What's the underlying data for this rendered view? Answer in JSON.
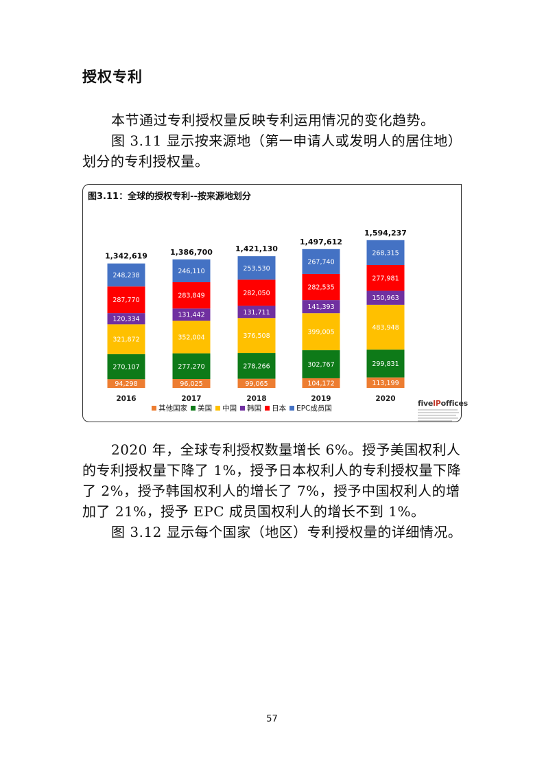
{
  "heading": "授权专利",
  "intro": {
    "lines": [
      "本节通过专利授权量反映专利运用情况的变化趋势。",
      "图 3.11 显示按来源地（第一申请人或发明人的居住地）划分的专利授权量。"
    ]
  },
  "chart_title": "图3.11：全球的授权专利--按来源地划分",
  "chart_data": {
    "type": "bar",
    "stacked": true,
    "categories": [
      "2016",
      "2017",
      "2018",
      "2019",
      "2020"
    ],
    "totals": [
      "1,342,619",
      "1,386,700",
      "1,421,130",
      "1,497,612",
      "1,594,237"
    ],
    "series": [
      {
        "name": "其他国家",
        "color": "#ED7D31",
        "values": [
          94298,
          96025,
          99065,
          104172,
          113199
        ],
        "labels": [
          "94,298",
          "96,025",
          "99,065",
          "104,172",
          "113,199"
        ]
      },
      {
        "name": "美国",
        "color": "#0E7A18",
        "values": [
          270107,
          277270,
          278266,
          302767,
          299831
        ],
        "labels": [
          "270,107",
          "277,270",
          "278,266",
          "302,767",
          "299,831"
        ]
      },
      {
        "name": "中国",
        "color": "#FFC000",
        "values": [
          321872,
          352004,
          376508,
          399005,
          483948
        ],
        "labels": [
          "321,872",
          "352,004",
          "376,508",
          "399,005",
          "483,948"
        ]
      },
      {
        "name": "韩国",
        "color": "#7030A0",
        "values": [
          120334,
          131442,
          131711,
          141393,
          150963
        ],
        "labels": [
          "120,334",
          "131,442",
          "131,711",
          "141,393",
          "150,963"
        ]
      },
      {
        "name": "日本",
        "color": "#FF0000",
        "values": [
          287770,
          283849,
          282050,
          282535,
          277981
        ],
        "labels": [
          "287,770",
          "283,849",
          "282,050",
          "282,535",
          "277,981"
        ]
      },
      {
        "name": "EPC成员国",
        "color": "#4472C4",
        "values": [
          248238,
          246110,
          253530,
          267740,
          268315
        ],
        "labels": [
          "248,238",
          "246,110",
          "253,530",
          "267,740",
          "268,315"
        ]
      }
    ],
    "legend_position": "bottom",
    "grid": false
  },
  "logo": {
    "pre": "five",
    "ip": "IP",
    "post": "offices"
  },
  "body": {
    "lines": [
      "2020 年，全球专利授权数量增长 6%。授予美国权利人的专利授权量下降了 1%，授予日本权利人的专利授权量下降了 2%，授予韩国权利人的增长了 7%，授予中国权利人的增加了 21%，授予 EPC 成员国权利人的增长不到 1%。",
      "图 3.12 显示每个国家（地区）专利授权量的详细情况。"
    ]
  },
  "page_number": "57"
}
